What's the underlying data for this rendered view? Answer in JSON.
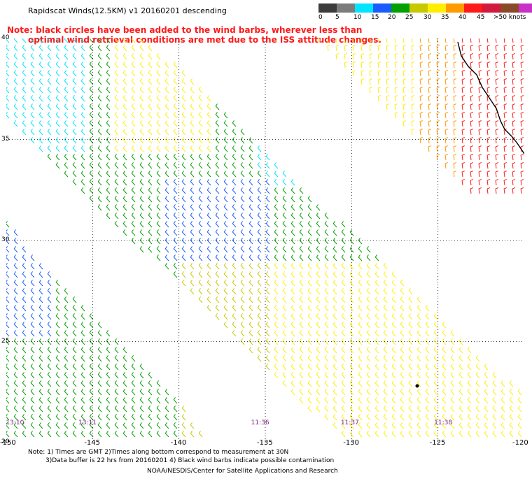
{
  "title": "Rapidscat Winds(12.5KM) v1 20160201 descending",
  "note_line1": "Note: black circles have been added to the wind barbs, wherever less than",
  "note_line2": "optimal wind retrieval conditions are met due to the ISS attitude changes.",
  "colorbar": {
    "colors": [
      "#3c3c3c",
      "#7c7c7c",
      "#00e5ff",
      "#1a5cff",
      "#00a000",
      "#c8c800",
      "#ffee00",
      "#ff9a00",
      "#ff1a1a",
      "#d21a3c",
      "#8a4a2a",
      "#c830c8",
      "#6a00b0"
    ],
    "labels": [
      "0",
      "5",
      "10",
      "15",
      "20",
      "25",
      "30",
      "35",
      "40",
      "45",
      ">50 knots"
    ]
  },
  "map": {
    "lon_min": -150,
    "lon_max": -120,
    "lat_min": 20,
    "lat_max": 40,
    "lat_labels": [
      "40",
      "35",
      "30",
      "25",
      "20"
    ],
    "lon_labels": [
      "-150",
      "-145",
      "-140",
      "-135",
      "-130",
      "-125",
      "-120"
    ],
    "time_labels": [
      {
        "lon": -149.7,
        "text": "13:10"
      },
      {
        "lon": -145.5,
        "text": "13:11"
      },
      {
        "lon": -135.5,
        "text": "11:36"
      },
      {
        "lon": -130.3,
        "text": "11:37"
      },
      {
        "lon": -124.9,
        "text": "11:38"
      }
    ]
  },
  "footer": {
    "line1": "Note: 1) Times are GMT 2)Times along bottom correspond to measurement at 30N",
    "line2": "3)Data buffer is 22 hrs from 20160201 4) Black wind barbs indicate possible contamination",
    "line3": "NOAA/NESDIS/Center for Satellite Applications and Research"
  }
}
